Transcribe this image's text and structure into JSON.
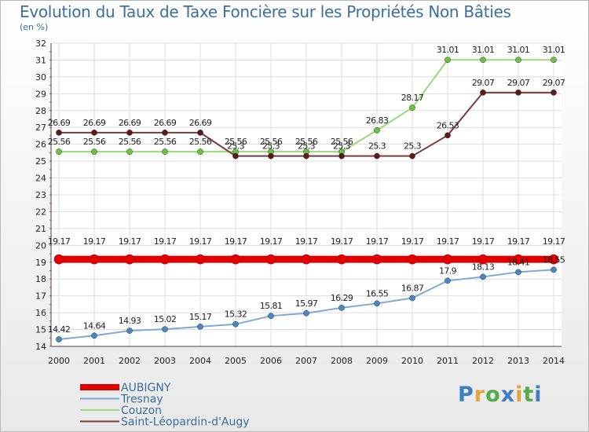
{
  "title": "Evolution du Taux de Taxe Foncière sur les Propriétés Non Bâties",
  "unit": "(en %)",
  "logo": {
    "text": "Proxiti",
    "colors": [
      "#3b7fc4",
      "#e8a23a",
      "#4fae46",
      "#3b7fc4",
      "#e8a23a",
      "#4fae46",
      "#3b7fc4"
    ]
  },
  "chart_data": {
    "type": "line",
    "title": "Evolution du Taux de Taxe Foncière sur les Propriétés Non Bâties",
    "ylabel": "(en %)",
    "xlabel": "",
    "ylim": [
      14,
      32
    ],
    "yticks": [
      14,
      15,
      16,
      17,
      18,
      19,
      20,
      21,
      22,
      23,
      24,
      25,
      26,
      27,
      28,
      29,
      30,
      31,
      32
    ],
    "x": [
      "2000",
      "2001",
      "2002",
      "2003",
      "2004",
      "2005",
      "2006",
      "2007",
      "2008",
      "2009",
      "2010",
      "2011",
      "2012",
      "2013",
      "2014"
    ],
    "grid": true,
    "legend": "bottom-left",
    "series": [
      {
        "name": "AUBIGNY",
        "color": "#e00000",
        "marker": "#e00000",
        "thick": true,
        "values": [
          19.17,
          19.17,
          19.17,
          19.17,
          19.17,
          19.17,
          19.17,
          19.17,
          19.17,
          19.17,
          19.17,
          19.17,
          19.17,
          19.17,
          19.17
        ],
        "labels": [
          "19.17",
          "19.17",
          "19.17",
          "19.17",
          "19.17",
          "19.17",
          "19.17",
          "19.17",
          "19.17",
          "19.17",
          "19.17",
          "19.17",
          "19.17",
          "19.17",
          "19.17"
        ]
      },
      {
        "name": "Tresnay",
        "color": "#7fa8d2",
        "marker": "#4a88c4",
        "thick": false,
        "values": [
          14.42,
          14.64,
          14.93,
          15.02,
          15.17,
          15.32,
          15.81,
          15.97,
          16.29,
          16.55,
          16.87,
          17.9,
          18.13,
          18.41,
          18.55
        ],
        "labels": [
          "14.42",
          "14.64",
          "14.93",
          "15.02",
          "15.17",
          "15.32",
          "15.81",
          "15.97",
          "16.29",
          "16.55",
          "16.87",
          "17.9",
          "18.13",
          "18.41",
          "18.55"
        ]
      },
      {
        "name": "Couzon",
        "color": "#9ad97c",
        "marker": "#6ac23e",
        "thick": false,
        "values": [
          25.56,
          25.56,
          25.56,
          25.56,
          25.56,
          25.56,
          25.56,
          25.56,
          25.56,
          26.83,
          28.17,
          31.01,
          31.01,
          31.01,
          31.01
        ],
        "labels": [
          "25.56",
          "25.56",
          "25.56",
          "25.56",
          "25.56",
          "25.56",
          "25.56",
          "25.56",
          "25.56",
          "26.83",
          "28.17",
          "31.01",
          "31.01",
          "31.01",
          "31.01"
        ]
      },
      {
        "name": "Saint-Léopardin-d'Augy",
        "color": "#7a3a3a",
        "marker": "#5a1a1a",
        "thick": false,
        "values": [
          26.69,
          26.69,
          26.69,
          26.69,
          26.69,
          25.3,
          25.3,
          25.3,
          25.3,
          25.3,
          25.3,
          26.53,
          29.07,
          29.07,
          29.07
        ],
        "labels": [
          "26.69",
          "26.69",
          "26.69",
          "26.69",
          "26.69",
          "25.3",
          "25.3",
          "25.3",
          "25.3",
          "25.3",
          "25.3",
          "26.53",
          "29.07",
          "29.07",
          "29.07"
        ]
      }
    ]
  }
}
